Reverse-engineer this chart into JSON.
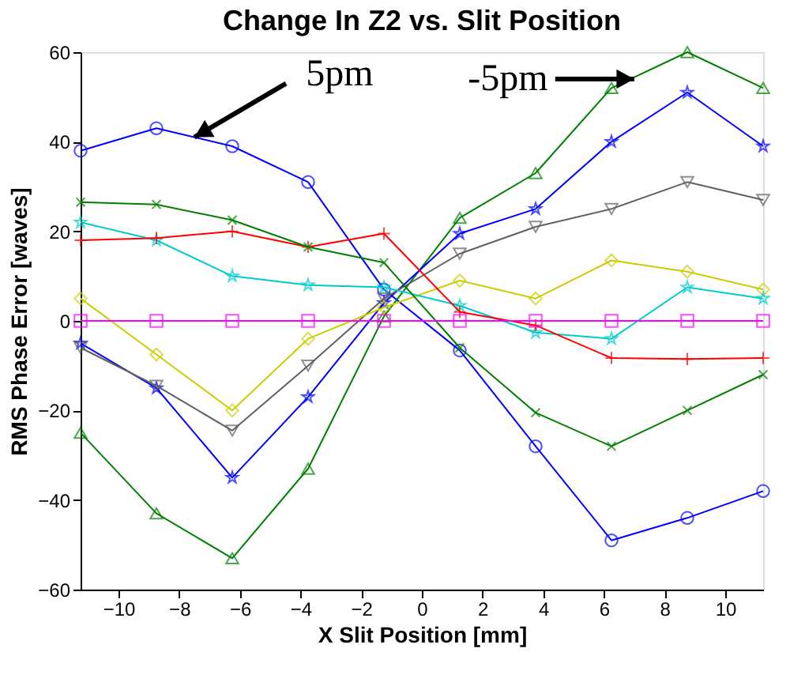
{
  "chart_data": {
    "type": "line",
    "title": "Change In Z2 vs. Slit Position",
    "xlabel": "X Slit Position [mm]",
    "ylabel": "RMS Phase Error [waves]",
    "x": [
      -11.25,
      -8.75,
      -6.25,
      -3.75,
      -1.25,
      1.25,
      3.75,
      6.25,
      8.75,
      11.25
    ],
    "xlim": [
      -11.25,
      11.25
    ],
    "xticks": [
      -10,
      -8,
      -6,
      -4,
      -2,
      0,
      2,
      4,
      6,
      8,
      10
    ],
    "ylim": [
      -60,
      60
    ],
    "yticks": [
      -60,
      -40,
      -20,
      0,
      20,
      40,
      60
    ],
    "grid": false,
    "legend": false,
    "line_style": "solid",
    "series": [
      {
        "color": "#0000ff",
        "marker": "circle",
        "values": [
          38,
          43,
          39,
          31,
          7,
          -6.6,
          -28,
          -49,
          -44,
          -38
        ]
      },
      {
        "color": "#008000",
        "marker": "triangle",
        "values": [
          -25,
          -43,
          -53,
          -33,
          1,
          23,
          33,
          52,
          60,
          52
        ]
      },
      {
        "color": "#0000ff",
        "marker": "star",
        "values": [
          -5,
          -15,
          -35,
          -17,
          4,
          19.5,
          25,
          40,
          51,
          39
        ]
      },
      {
        "color": "#606060",
        "marker": "triangle-down",
        "values": [
          -6,
          -14.5,
          -24.5,
          -10,
          5,
          15,
          21,
          25,
          31,
          27
        ]
      },
      {
        "color": "#cccc00",
        "marker": "diamond",
        "values": [
          5,
          -7.5,
          -20,
          -4,
          3,
          9,
          5,
          13.5,
          11,
          7
        ]
      },
      {
        "color": "#00cccc",
        "marker": "star",
        "values": [
          22,
          18,
          10,
          8,
          7.5,
          3.4,
          -2.6,
          -4,
          7.5,
          5
        ]
      },
      {
        "color": "#ff0000",
        "marker": "cross",
        "values": [
          18,
          18.5,
          20,
          16.5,
          19.5,
          2,
          -1,
          -8.3,
          -8.5,
          -8.3
        ]
      },
      {
        "color": "#008000",
        "marker": "x",
        "values": [
          26.5,
          26,
          22.5,
          16.5,
          13,
          -6,
          -20.5,
          -28,
          -20,
          -12
        ]
      },
      {
        "color": "#ff00ff",
        "marker": "square",
        "values": [
          0,
          0,
          0,
          0,
          0,
          0,
          0,
          0,
          0,
          0
        ]
      }
    ],
    "annotations": [
      {
        "text": "5pm",
        "x": -7.5,
        "y": 41
      },
      {
        "text": "-5pm",
        "x": 7.0,
        "y": 54
      }
    ]
  }
}
